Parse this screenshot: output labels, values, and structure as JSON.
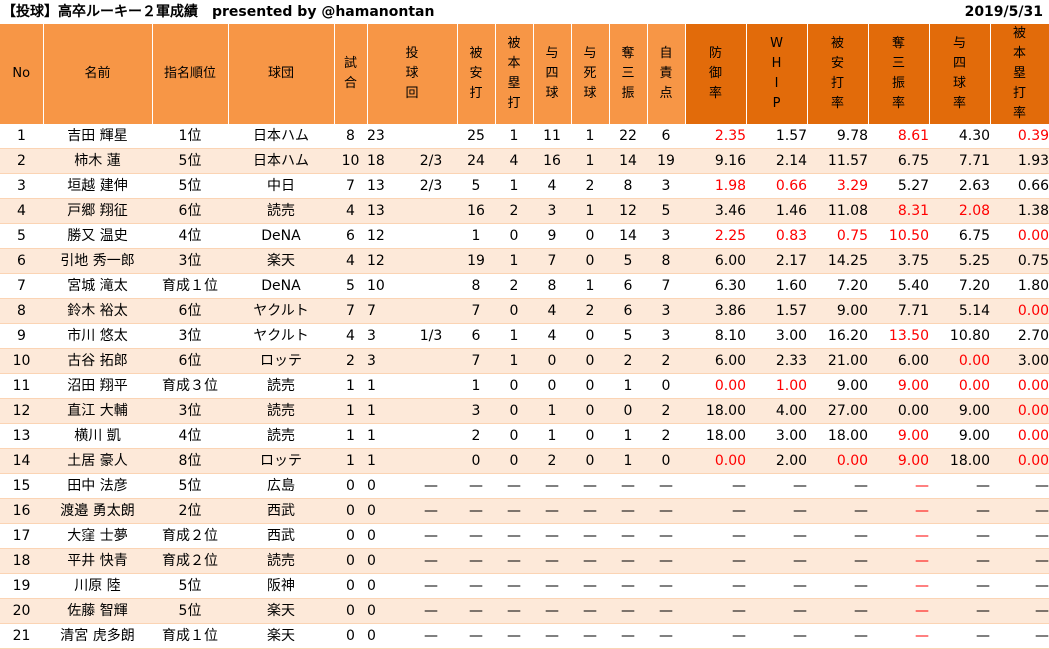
{
  "header": {
    "title": "【投球】高卒ルーキー２軍成績　presented by @hamanontan",
    "date": "2019/5/31"
  },
  "table": {
    "columns": [
      {
        "key": "no",
        "label": "No"
      },
      {
        "key": "name",
        "label": "名前"
      },
      {
        "key": "draft",
        "label": "指名順位"
      },
      {
        "key": "team",
        "label": "球団"
      },
      {
        "key": "g",
        "label": "試合"
      },
      {
        "key": "ip",
        "label": "投球回"
      },
      {
        "key": "h",
        "label": "被安打"
      },
      {
        "key": "hr",
        "label": "被本塁打"
      },
      {
        "key": "bb",
        "label": "与四球"
      },
      {
        "key": "hbp",
        "label": "与死球"
      },
      {
        "key": "so",
        "label": "奪三振"
      },
      {
        "key": "er",
        "label": "自責点"
      },
      {
        "key": "era",
        "label": "防御率"
      },
      {
        "key": "whip",
        "label": "WHIP"
      },
      {
        "key": "h9",
        "label": "被安打率"
      },
      {
        "key": "k9",
        "label": "奪三振率"
      },
      {
        "key": "bb9",
        "label": "与四球率"
      },
      {
        "key": "hr9",
        "label": "被本塁打率"
      }
    ],
    "rows": [
      {
        "no": "1",
        "name": "吉田 輝星",
        "draft": "1位",
        "team": "日本ハム",
        "g": "8",
        "ip": "23",
        "ipf": "",
        "h": "25",
        "hr": "1",
        "bb": "11",
        "hbp": "1",
        "so": "22",
        "er": "6",
        "era": "2.35",
        "whip": "1.57",
        "h9": "9.78",
        "k9": "8.61",
        "bb9": "4.30",
        "hr9": "0.39",
        "red": [
          "era",
          "k9",
          "hr9"
        ]
      },
      {
        "no": "2",
        "name": "柿木 蓮",
        "draft": "5位",
        "team": "日本ハム",
        "g": "10",
        "ip": "18",
        "ipf": "2/3",
        "h": "24",
        "hr": "4",
        "bb": "16",
        "hbp": "1",
        "so": "14",
        "er": "19",
        "era": "9.16",
        "whip": "2.14",
        "h9": "11.57",
        "k9": "6.75",
        "bb9": "7.71",
        "hr9": "1.93",
        "red": []
      },
      {
        "no": "3",
        "name": "垣越 建伸",
        "draft": "5位",
        "team": "中日",
        "g": "7",
        "ip": "13",
        "ipf": "2/3",
        "h": "5",
        "hr": "1",
        "bb": "4",
        "hbp": "2",
        "so": "8",
        "er": "3",
        "era": "1.98",
        "whip": "0.66",
        "h9": "3.29",
        "k9": "5.27",
        "bb9": "2.63",
        "hr9": "0.66",
        "red": [
          "era",
          "whip",
          "h9"
        ]
      },
      {
        "no": "4",
        "name": "戸郷 翔征",
        "draft": "6位",
        "team": "読売",
        "g": "4",
        "ip": "13",
        "ipf": "",
        "h": "16",
        "hr": "2",
        "bb": "3",
        "hbp": "1",
        "so": "12",
        "er": "5",
        "era": "3.46",
        "whip": "1.46",
        "h9": "11.08",
        "k9": "8.31",
        "bb9": "2.08",
        "hr9": "1.38",
        "red": [
          "k9",
          "bb9"
        ]
      },
      {
        "no": "5",
        "name": "勝又 温史",
        "draft": "4位",
        "team": "DeNA",
        "g": "6",
        "ip": "12",
        "ipf": "",
        "h": "1",
        "hr": "0",
        "bb": "9",
        "hbp": "0",
        "so": "14",
        "er": "3",
        "era": "2.25",
        "whip": "0.83",
        "h9": "0.75",
        "k9": "10.50",
        "bb9": "6.75",
        "hr9": "0.00",
        "red": [
          "era",
          "whip",
          "h9",
          "k9",
          "hr9"
        ]
      },
      {
        "no": "6",
        "name": "引地 秀一郎",
        "draft": "3位",
        "team": "楽天",
        "g": "4",
        "ip": "12",
        "ipf": "",
        "h": "19",
        "hr": "1",
        "bb": "7",
        "hbp": "0",
        "so": "5",
        "er": "8",
        "era": "6.00",
        "whip": "2.17",
        "h9": "14.25",
        "k9": "3.75",
        "bb9": "5.25",
        "hr9": "0.75",
        "red": []
      },
      {
        "no": "7",
        "name": "宮城 滝太",
        "draft": "育成１位",
        "team": "DeNA",
        "g": "5",
        "ip": "10",
        "ipf": "",
        "h": "8",
        "hr": "2",
        "bb": "8",
        "hbp": "1",
        "so": "6",
        "er": "7",
        "era": "6.30",
        "whip": "1.60",
        "h9": "7.20",
        "k9": "5.40",
        "bb9": "7.20",
        "hr9": "1.80",
        "red": []
      },
      {
        "no": "8",
        "name": "鈴木 裕太",
        "draft": "6位",
        "team": "ヤクルト",
        "g": "7",
        "ip": "7",
        "ipf": "",
        "h": "7",
        "hr": "0",
        "bb": "4",
        "hbp": "2",
        "so": "6",
        "er": "3",
        "era": "3.86",
        "whip": "1.57",
        "h9": "9.00",
        "k9": "7.71",
        "bb9": "5.14",
        "hr9": "0.00",
        "red": [
          "hr9"
        ]
      },
      {
        "no": "9",
        "name": "市川 悠太",
        "draft": "3位",
        "team": "ヤクルト",
        "g": "4",
        "ip": "3",
        "ipf": "1/3",
        "h": "6",
        "hr": "1",
        "bb": "4",
        "hbp": "0",
        "so": "5",
        "er": "3",
        "era": "8.10",
        "whip": "3.00",
        "h9": "16.20",
        "k9": "13.50",
        "bb9": "10.80",
        "hr9": "2.70",
        "red": [
          "k9"
        ]
      },
      {
        "no": "10",
        "name": "古谷 拓郎",
        "draft": "6位",
        "team": "ロッテ",
        "g": "2",
        "ip": "3",
        "ipf": "",
        "h": "7",
        "hr": "1",
        "bb": "0",
        "hbp": "0",
        "so": "2",
        "er": "2",
        "era": "6.00",
        "whip": "2.33",
        "h9": "21.00",
        "k9": "6.00",
        "bb9": "0.00",
        "hr9": "3.00",
        "red": [
          "bb9"
        ]
      },
      {
        "no": "11",
        "name": "沼田 翔平",
        "draft": "育成３位",
        "team": "読売",
        "g": "1",
        "ip": "1",
        "ipf": "",
        "h": "1",
        "hr": "0",
        "bb": "0",
        "hbp": "0",
        "so": "1",
        "er": "0",
        "era": "0.00",
        "whip": "1.00",
        "h9": "9.00",
        "k9": "9.00",
        "bb9": "0.00",
        "hr9": "0.00",
        "red": [
          "era",
          "whip",
          "k9",
          "bb9",
          "hr9"
        ]
      },
      {
        "no": "12",
        "name": "直江 大輔",
        "draft": "3位",
        "team": "読売",
        "g": "1",
        "ip": "1",
        "ipf": "",
        "h": "3",
        "hr": "0",
        "bb": "1",
        "hbp": "0",
        "so": "0",
        "er": "2",
        "era": "18.00",
        "whip": "4.00",
        "h9": "27.00",
        "k9": "0.00",
        "bb9": "9.00",
        "hr9": "0.00",
        "red": [
          "hr9"
        ]
      },
      {
        "no": "13",
        "name": "横川 凱",
        "draft": "4位",
        "team": "読売",
        "g": "1",
        "ip": "1",
        "ipf": "",
        "h": "2",
        "hr": "0",
        "bb": "1",
        "hbp": "0",
        "so": "1",
        "er": "2",
        "era": "18.00",
        "whip": "3.00",
        "h9": "18.00",
        "k9": "9.00",
        "bb9": "9.00",
        "hr9": "0.00",
        "red": [
          "k9",
          "hr9"
        ]
      },
      {
        "no": "14",
        "name": "土居 豪人",
        "draft": "8位",
        "team": "ロッテ",
        "g": "1",
        "ip": "1",
        "ipf": "",
        "h": "0",
        "hr": "0",
        "bb": "2",
        "hbp": "0",
        "so": "1",
        "er": "0",
        "era": "0.00",
        "whip": "2.00",
        "h9": "0.00",
        "k9": "9.00",
        "bb9": "18.00",
        "hr9": "0.00",
        "red": [
          "era",
          "h9",
          "k9",
          "hr9"
        ]
      },
      {
        "no": "15",
        "name": "田中 法彦",
        "draft": "5位",
        "team": "広島",
        "g": "0",
        "ip": "0",
        "ipf": "—",
        "h": "—",
        "hr": "—",
        "bb": "—",
        "hbp": "—",
        "so": "—",
        "er": "—",
        "era": "—",
        "whip": "—",
        "h9": "—",
        "k9": "—",
        "bb9": "—",
        "hr9": "—",
        "red": [
          "k9"
        ]
      },
      {
        "no": "16",
        "name": "渡邉 勇太朗",
        "draft": "2位",
        "team": "西武",
        "g": "0",
        "ip": "0",
        "ipf": "—",
        "h": "—",
        "hr": "—",
        "bb": "—",
        "hbp": "—",
        "so": "—",
        "er": "—",
        "era": "—",
        "whip": "—",
        "h9": "—",
        "k9": "—",
        "bb9": "—",
        "hr9": "—",
        "red": [
          "k9"
        ]
      },
      {
        "no": "17",
        "name": "大窪 士夢",
        "draft": "育成２位",
        "team": "西武",
        "g": "0",
        "ip": "0",
        "ipf": "—",
        "h": "—",
        "hr": "—",
        "bb": "—",
        "hbp": "—",
        "so": "—",
        "er": "—",
        "era": "—",
        "whip": "—",
        "h9": "—",
        "k9": "—",
        "bb9": "—",
        "hr9": "—",
        "red": [
          "k9"
        ]
      },
      {
        "no": "18",
        "name": "平井 快青",
        "draft": "育成２位",
        "team": "読売",
        "g": "0",
        "ip": "0",
        "ipf": "—",
        "h": "—",
        "hr": "—",
        "bb": "—",
        "hbp": "—",
        "so": "—",
        "er": "—",
        "era": "—",
        "whip": "—",
        "h9": "—",
        "k9": "—",
        "bb9": "—",
        "hr9": "—",
        "red": [
          "k9"
        ]
      },
      {
        "no": "19",
        "name": "川原 陸",
        "draft": "5位",
        "team": "阪神",
        "g": "0",
        "ip": "0",
        "ipf": "—",
        "h": "—",
        "hr": "—",
        "bb": "—",
        "hbp": "—",
        "so": "—",
        "er": "—",
        "era": "—",
        "whip": "—",
        "h9": "—",
        "k9": "—",
        "bb9": "—",
        "hr9": "—",
        "red": [
          "k9"
        ]
      },
      {
        "no": "20",
        "name": "佐藤 智輝",
        "draft": "5位",
        "team": "楽天",
        "g": "0",
        "ip": "0",
        "ipf": "—",
        "h": "—",
        "hr": "—",
        "bb": "—",
        "hbp": "—",
        "so": "—",
        "er": "—",
        "era": "—",
        "whip": "—",
        "h9": "—",
        "k9": "—",
        "bb9": "—",
        "hr9": "—",
        "red": [
          "k9"
        ]
      },
      {
        "no": "21",
        "name": "清宮 虎多朗",
        "draft": "育成１位",
        "team": "楽天",
        "g": "0",
        "ip": "0",
        "ipf": "—",
        "h": "—",
        "hr": "—",
        "bb": "—",
        "hbp": "—",
        "so": "—",
        "er": "—",
        "era": "—",
        "whip": "—",
        "h9": "—",
        "k9": "—",
        "bb9": "—",
        "hr9": "—",
        "red": [
          "k9"
        ]
      }
    ]
  },
  "colors": {
    "header_light": "#f79646",
    "header_dark": "#e26b0a",
    "row_alt": "#fde9d9",
    "highlight_text": "#ff0000"
  }
}
